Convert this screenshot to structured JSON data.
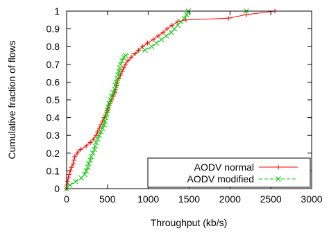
{
  "chart_data": {
    "type": "line",
    "xlabel": "Throughput (kb/s)",
    "ylabel": "Cumulative fraction of flows",
    "xlim": [
      0,
      3000
    ],
    "ylim": [
      0,
      1
    ],
    "xticks": [
      "0",
      "500",
      "1000",
      "1500",
      "2000",
      "2500",
      "3000"
    ],
    "yticks": [
      "0",
      "0.1",
      "0.2",
      "0.3",
      "0.4",
      "0.5",
      "0.6",
      "0.7",
      "0.8",
      "0.9",
      "1"
    ],
    "grid": false,
    "legend_position": "bottom-right",
    "series": [
      {
        "name": "AODV normal",
        "color": "#ff0000",
        "marker": "plus",
        "line_style": "solid",
        "points": [
          [
            0,
            0.0
          ],
          [
            5,
            0.02
          ],
          [
            10,
            0.04
          ],
          [
            20,
            0.06
          ],
          [
            30,
            0.08
          ],
          [
            45,
            0.1
          ],
          [
            60,
            0.12
          ],
          [
            80,
            0.14
          ],
          [
            90,
            0.16
          ],
          [
            100,
            0.18
          ],
          [
            130,
            0.2
          ],
          [
            170,
            0.22
          ],
          [
            240,
            0.24
          ],
          [
            290,
            0.26
          ],
          [
            330,
            0.28
          ],
          [
            360,
            0.3
          ],
          [
            380,
            0.32
          ],
          [
            400,
            0.34
          ],
          [
            420,
            0.36
          ],
          [
            440,
            0.38
          ],
          [
            460,
            0.4
          ],
          [
            480,
            0.42
          ],
          [
            500,
            0.44
          ],
          [
            510,
            0.46
          ],
          [
            530,
            0.48
          ],
          [
            550,
            0.5
          ],
          [
            570,
            0.52
          ],
          [
            590,
            0.54
          ],
          [
            600,
            0.56
          ],
          [
            610,
            0.58
          ],
          [
            620,
            0.6
          ],
          [
            640,
            0.62
          ],
          [
            660,
            0.64
          ],
          [
            680,
            0.66
          ],
          [
            700,
            0.68
          ],
          [
            720,
            0.7
          ],
          [
            750,
            0.72
          ],
          [
            790,
            0.74
          ],
          [
            840,
            0.76
          ],
          [
            880,
            0.78
          ],
          [
            930,
            0.8
          ],
          [
            990,
            0.82
          ],
          [
            1060,
            0.84
          ],
          [
            1120,
            0.86
          ],
          [
            1180,
            0.88
          ],
          [
            1230,
            0.9
          ],
          [
            1290,
            0.92
          ],
          [
            1360,
            0.94
          ],
          [
            1460,
            0.95
          ],
          [
            1980,
            0.96
          ],
          [
            2200,
            0.98
          ],
          [
            2550,
            1.0
          ]
        ]
      },
      {
        "name": "AODV modified",
        "color": "#00cc00",
        "marker": "x",
        "line_style": "dashed",
        "points": [
          [
            0,
            0.0
          ],
          [
            40,
            0.02
          ],
          [
            110,
            0.04
          ],
          [
            180,
            0.06
          ],
          [
            220,
            0.08
          ],
          [
            240,
            0.1
          ],
          [
            260,
            0.12
          ],
          [
            270,
            0.14
          ],
          [
            290,
            0.16
          ],
          [
            300,
            0.18
          ],
          [
            320,
            0.2
          ],
          [
            340,
            0.22
          ],
          [
            350,
            0.24
          ],
          [
            360,
            0.26
          ],
          [
            380,
            0.28
          ],
          [
            400,
            0.3
          ],
          [
            420,
            0.32
          ],
          [
            440,
            0.34
          ],
          [
            460,
            0.36
          ],
          [
            470,
            0.38
          ],
          [
            480,
            0.4
          ],
          [
            490,
            0.42
          ],
          [
            500,
            0.44
          ],
          [
            510,
            0.46
          ],
          [
            520,
            0.48
          ],
          [
            540,
            0.5
          ],
          [
            550,
            0.52
          ],
          [
            570,
            0.54
          ],
          [
            590,
            0.56
          ],
          [
            600,
            0.58
          ],
          [
            610,
            0.6
          ],
          [
            620,
            0.62
          ],
          [
            630,
            0.64
          ],
          [
            640,
            0.66
          ],
          [
            650,
            0.68
          ],
          [
            660,
            0.7
          ],
          [
            680,
            0.72
          ],
          [
            700,
            0.74
          ],
          [
            720,
            0.75
          ],
          [
            960,
            0.78
          ],
          [
            1040,
            0.8
          ],
          [
            1100,
            0.82
          ],
          [
            1160,
            0.84
          ],
          [
            1220,
            0.86
          ],
          [
            1280,
            0.88
          ],
          [
            1320,
            0.9
          ],
          [
            1360,
            0.92
          ],
          [
            1400,
            0.94
          ],
          [
            1440,
            0.96
          ],
          [
            1470,
            0.98
          ],
          [
            1490,
            1.0
          ],
          [
            2200,
            1.0
          ]
        ]
      }
    ]
  }
}
